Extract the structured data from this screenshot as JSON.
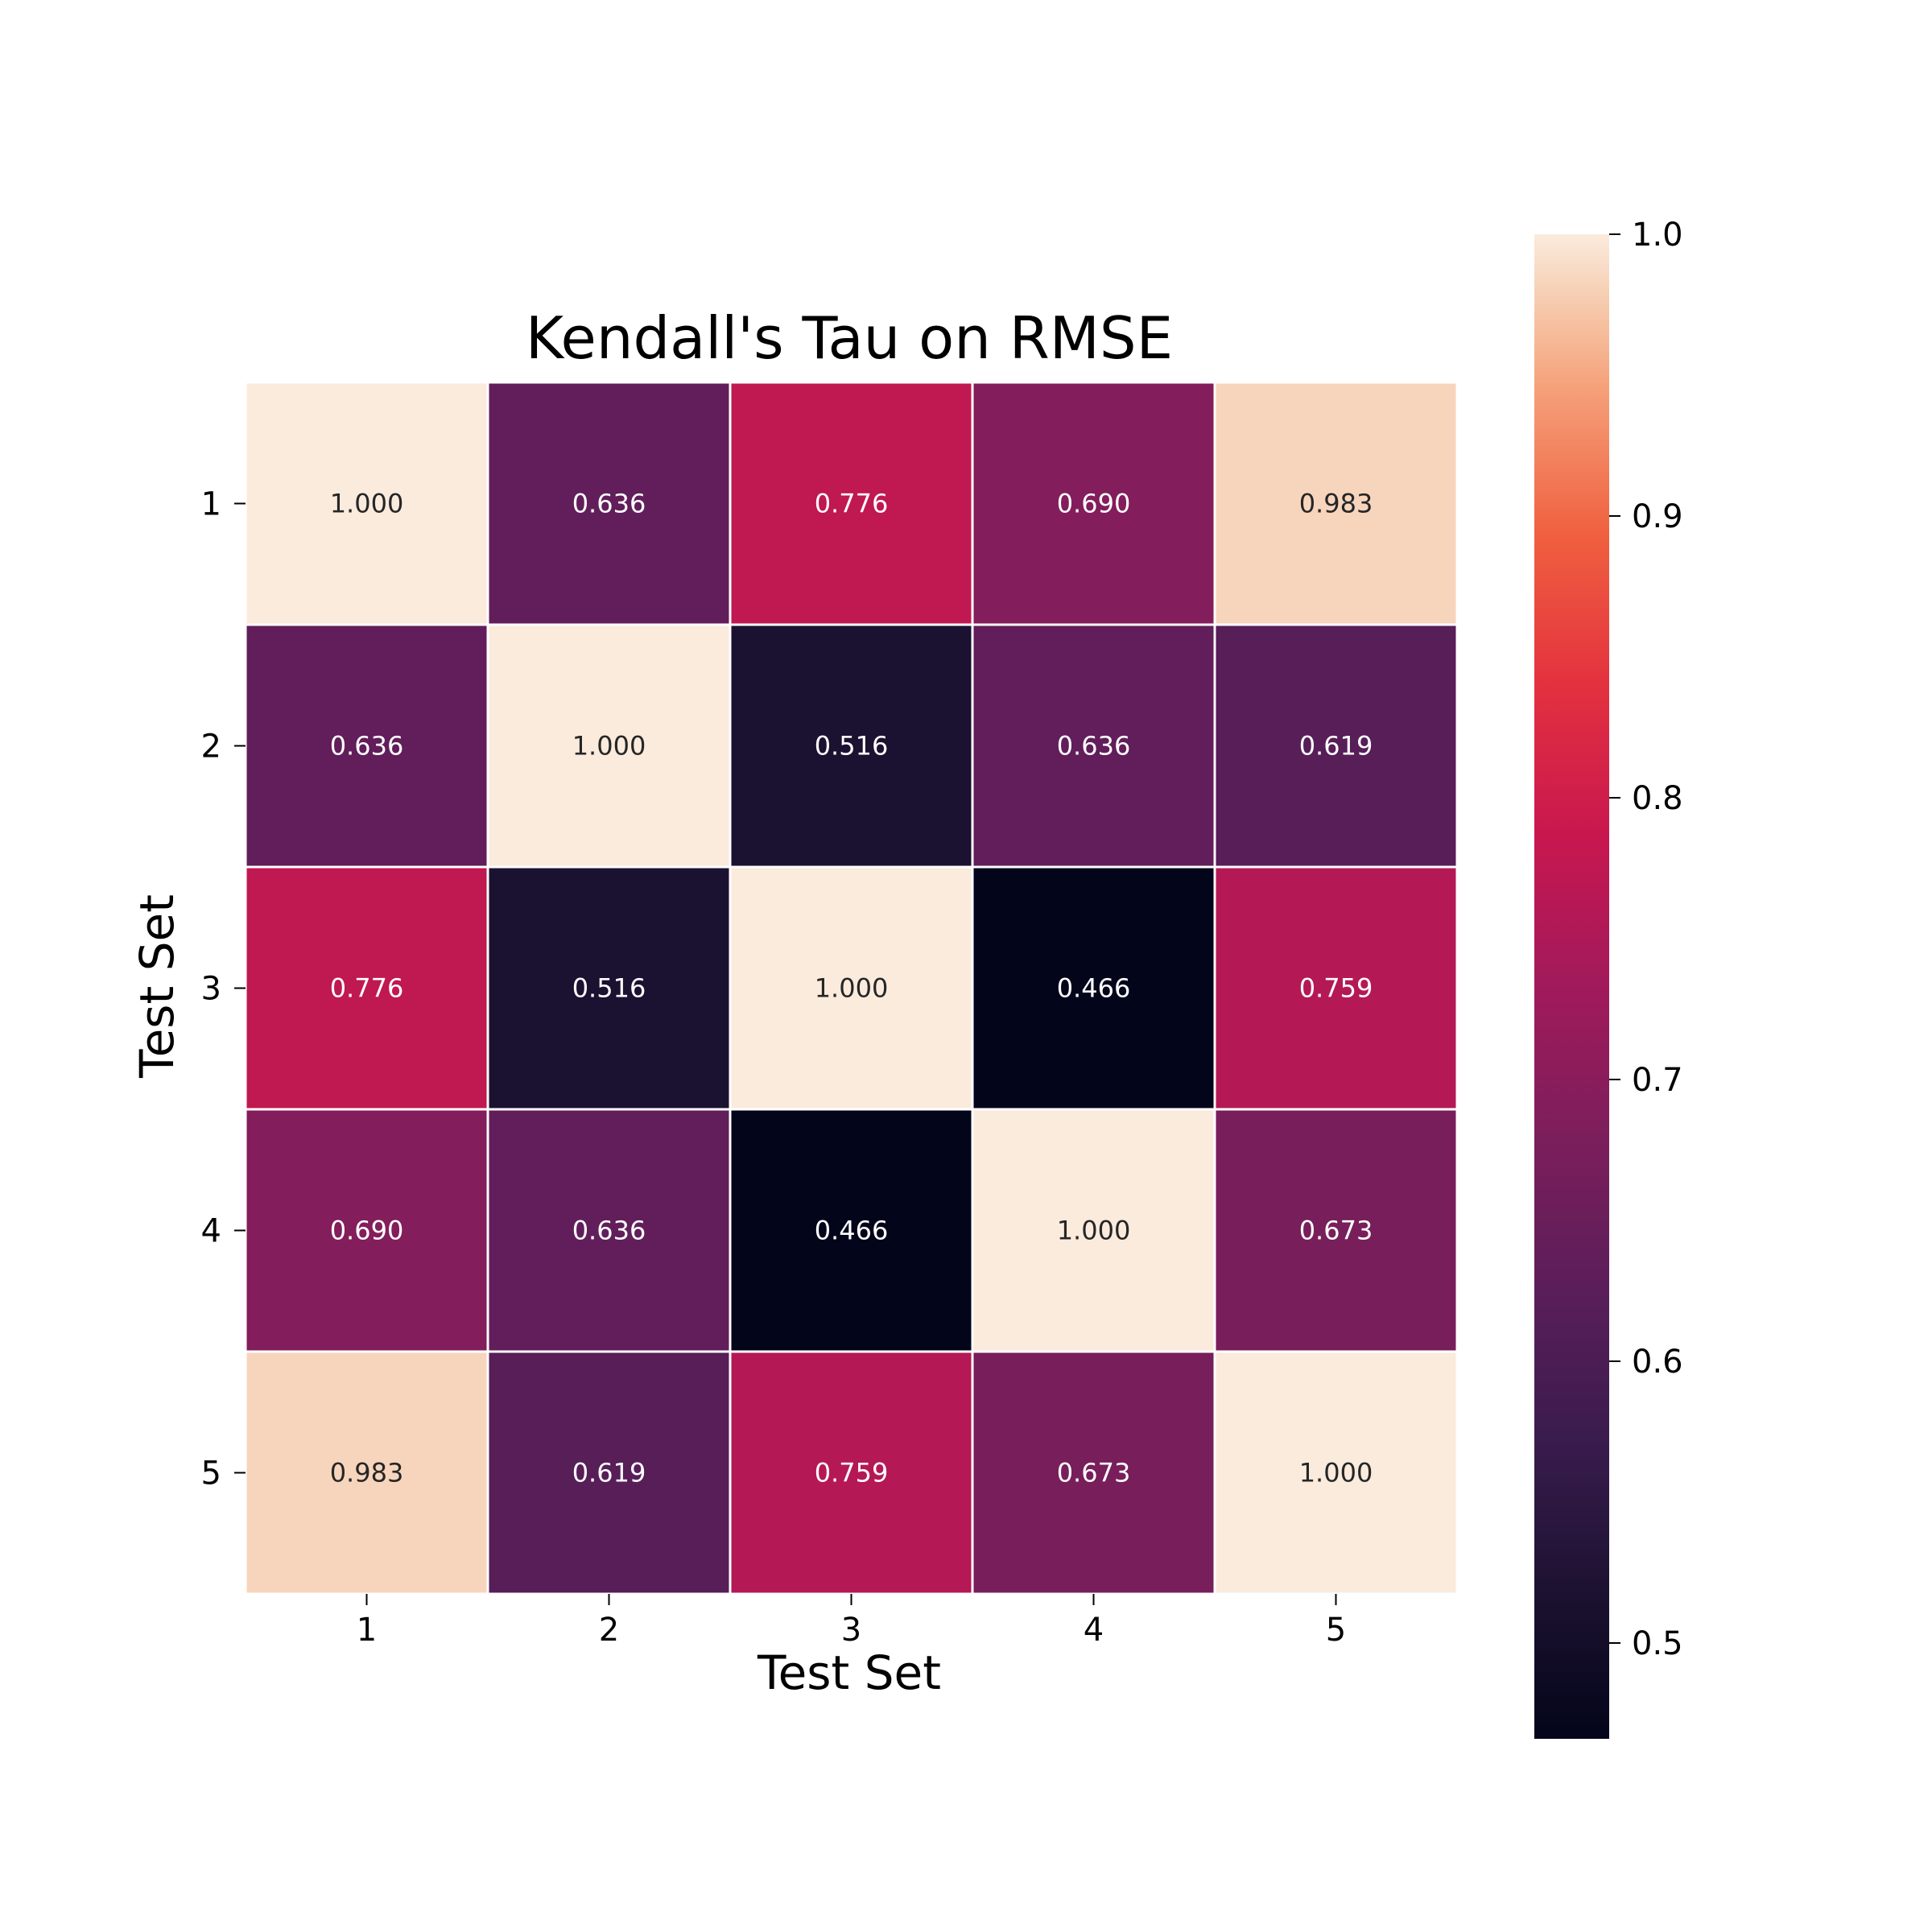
{
  "chart_data": {
    "type": "heatmap",
    "title": "Kendall's Tau on RMSE",
    "xlabel": "Test Set",
    "ylabel": "Test Set",
    "x_categories": [
      "1",
      "2",
      "3",
      "4",
      "5"
    ],
    "y_categories": [
      "1",
      "2",
      "3",
      "4",
      "5"
    ],
    "values": [
      [
        1.0,
        0.636,
        0.776,
        0.69,
        0.983
      ],
      [
        0.636,
        1.0,
        0.516,
        0.636,
        0.619
      ],
      [
        0.776,
        0.516,
        1.0,
        0.466,
        0.759
      ],
      [
        0.69,
        0.636,
        0.466,
        1.0,
        0.673
      ],
      [
        0.983,
        0.619,
        0.759,
        0.673,
        1.0
      ]
    ],
    "value_labels": [
      [
        "1.000",
        "0.636",
        "0.776",
        "0.690",
        "0.983"
      ],
      [
        "0.636",
        "1.000",
        "0.516",
        "0.636",
        "0.619"
      ],
      [
        "0.776",
        "0.516",
        "1.000",
        "0.466",
        "0.759"
      ],
      [
        "0.690",
        "0.636",
        "0.466",
        "1.000",
        "0.673"
      ],
      [
        "0.983",
        "0.619",
        "0.759",
        "0.673",
        "1.000"
      ]
    ],
    "colorbar": {
      "range": [
        0.466,
        1.0
      ],
      "ticks": [
        0.5,
        0.6,
        0.7,
        0.8,
        0.9,
        1.0
      ],
      "tick_labels": [
        "0.5",
        "0.6",
        "0.7",
        "0.8",
        "0.9",
        "1.0"
      ]
    },
    "colormap": "rocket",
    "colormap_stops": [
      [
        0.0,
        "#03051a"
      ],
      [
        0.1,
        "#1d1231"
      ],
      [
        0.2,
        "#3a1c4e"
      ],
      [
        0.3,
        "#5b1e5a"
      ],
      [
        0.4,
        "#7c1e5b"
      ],
      [
        0.5,
        "#a11a5b"
      ],
      [
        0.6,
        "#c8174f"
      ],
      [
        0.7,
        "#e3313f"
      ],
      [
        0.8,
        "#f0603f"
      ],
      [
        0.9,
        "#f5a27b"
      ],
      [
        0.95,
        "#f6c8aa"
      ],
      [
        1.0,
        "#faebdd"
      ]
    ],
    "legend": "colorbar-right",
    "grid": false
  }
}
